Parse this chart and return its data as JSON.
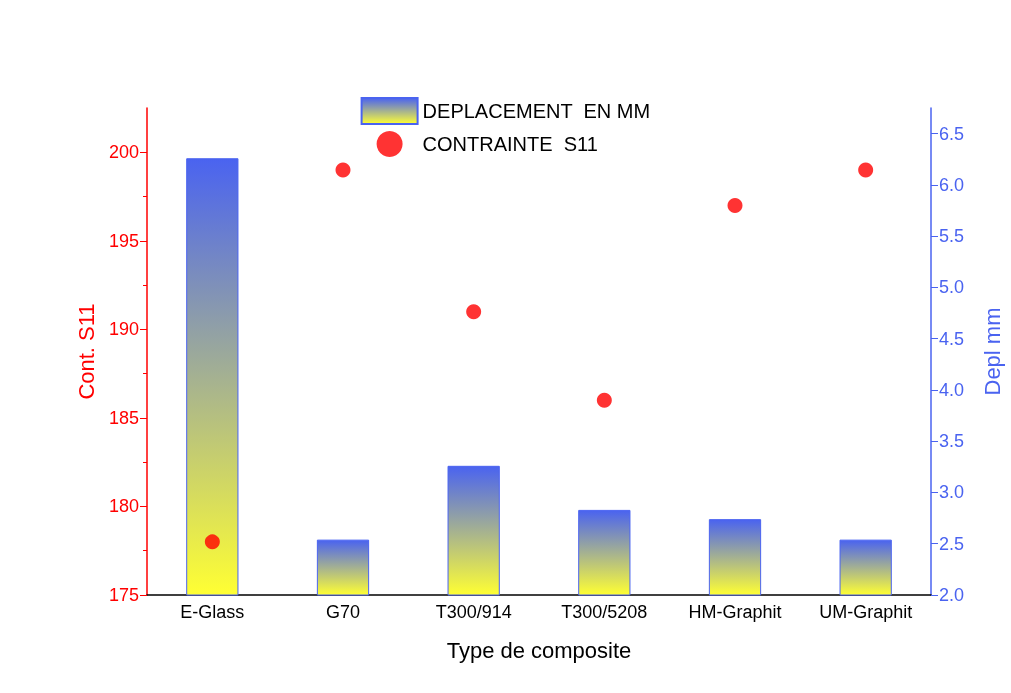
{
  "chart_data": {
    "type": "bar",
    "xlabel": "Type de composite",
    "ylabel": "Cont. S11",
    "y2label": "Depl mm",
    "categories": [
      "E-Glass",
      "G70",
      "T300/914",
      "T300/5208",
      "HM-Graphit",
      "UM-Graphit"
    ],
    "series": [
      {
        "name": "DEPLACEMENT  EN MM",
        "axis": "y2",
        "color": "#4a63f0",
        "values": [
          6.26,
          2.54,
          3.26,
          2.83,
          2.74,
          2.54
        ]
      },
      {
        "name": "CONTRAINTE  S11",
        "type": "scatter",
        "color": "#ff0000",
        "values": [
          178,
          199,
          191,
          186,
          197,
          199
        ]
      }
    ],
    "ylim": [
      175,
      202.5
    ],
    "yticks": [
      175,
      180,
      185,
      190,
      195,
      200
    ],
    "y2lim": [
      2.0,
      6.75
    ],
    "y2ticks": [
      {
        "value": 2,
        "label": "2.0"
      },
      2.5,
      {
        "value": 3,
        "label": "3.0"
      },
      3.5,
      {
        "value": 4,
        "label": "4.0"
      },
      4.5,
      {
        "value": 5,
        "label": "5.0"
      },
      5.5,
      {
        "value": 6,
        "label": "6.0"
      },
      6.5
    ],
    "marker": "circle",
    "grid": false,
    "legend": "top"
  }
}
